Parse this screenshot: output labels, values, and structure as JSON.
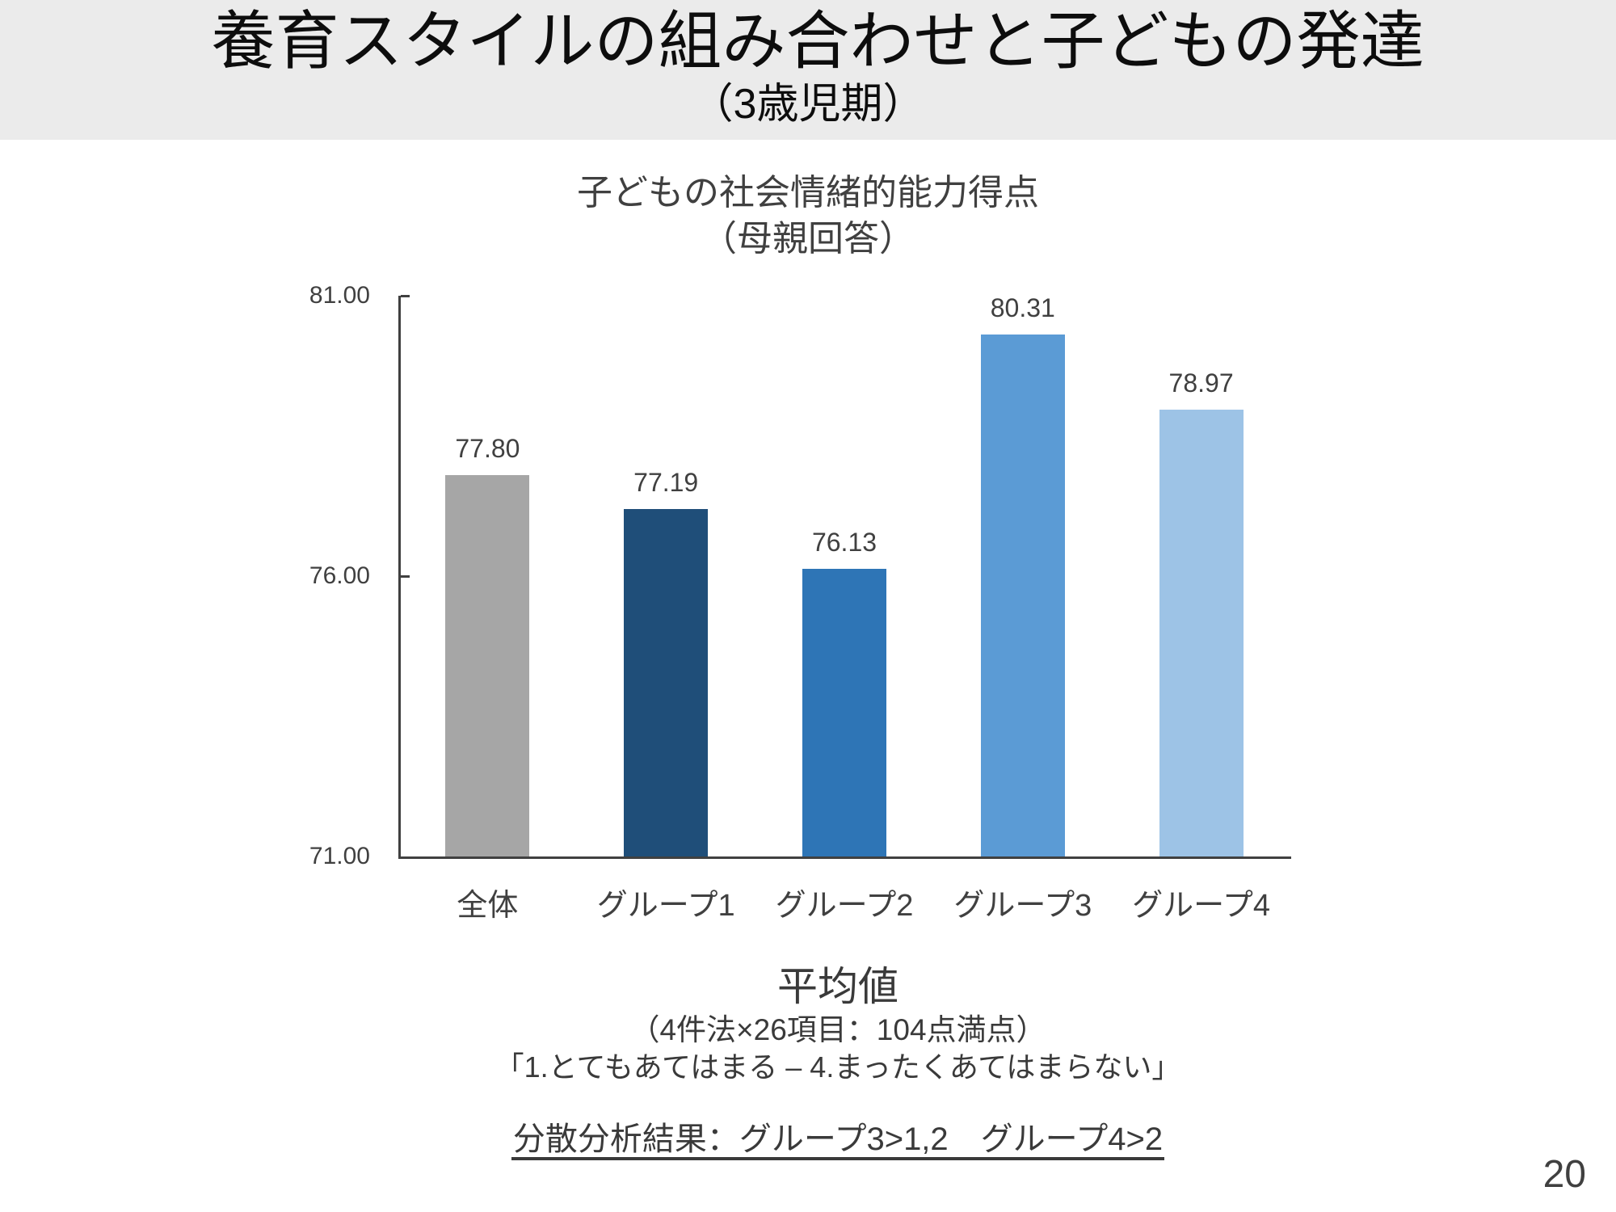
{
  "slide": {
    "title": "養育スタイルの組み合わせと子どもの発達",
    "subtitle": "（3歳児期）",
    "page_number": "20"
  },
  "chart_data": {
    "type": "bar",
    "title": "子どもの社会情緒的能力得点（母親回答）",
    "title_line1": "子どもの社会情緒的能力得点",
    "title_line2": "（母親回答）",
    "categories": [
      "全体",
      "グループ1",
      "グループ2",
      "グループ3",
      "グループ4"
    ],
    "values": [
      77.8,
      77.19,
      76.13,
      80.31,
      78.97
    ],
    "value_labels": [
      "77.80",
      "77.19",
      "76.13",
      "80.31",
      "78.97"
    ],
    "bar_colors": [
      "#a6a6a6",
      "#1f4e79",
      "#2e75b6",
      "#5b9bd5",
      "#9dc3e6"
    ],
    "ylim": [
      71,
      81
    ],
    "yticks": [
      {
        "value": 81,
        "label": "81.00"
      },
      {
        "value": 76,
        "label": "76.00"
      },
      {
        "value": 71,
        "label": "71.00"
      }
    ],
    "grid": false,
    "legend": "none"
  },
  "notes": {
    "mean_label": "平均値",
    "scale_note": "（4件法×26項目：104点満点）",
    "anchor_note": "「1.とてもあてはまる – 4.まったくあてはまらない」",
    "anova_note": "分散分析結果：グループ3>1,2　グループ4>2"
  }
}
